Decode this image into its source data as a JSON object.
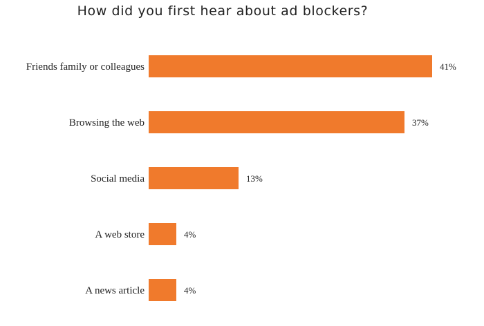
{
  "chart_data": {
    "type": "bar",
    "orientation": "horizontal",
    "title": "How did you first hear about ad blockers?",
    "categories": [
      "Friends family or colleagues",
      "Browsing the web",
      "Social media",
      "A web store",
      "A news article"
    ],
    "values": [
      41,
      37,
      13,
      4,
      4
    ],
    "value_labels": [
      "41%",
      "37%",
      "13%",
      "4%",
      "4%"
    ],
    "value_unit": "%",
    "xlim": [
      0,
      41
    ],
    "grid": false,
    "legend": "none",
    "bar_color": "#F07A2C"
  }
}
